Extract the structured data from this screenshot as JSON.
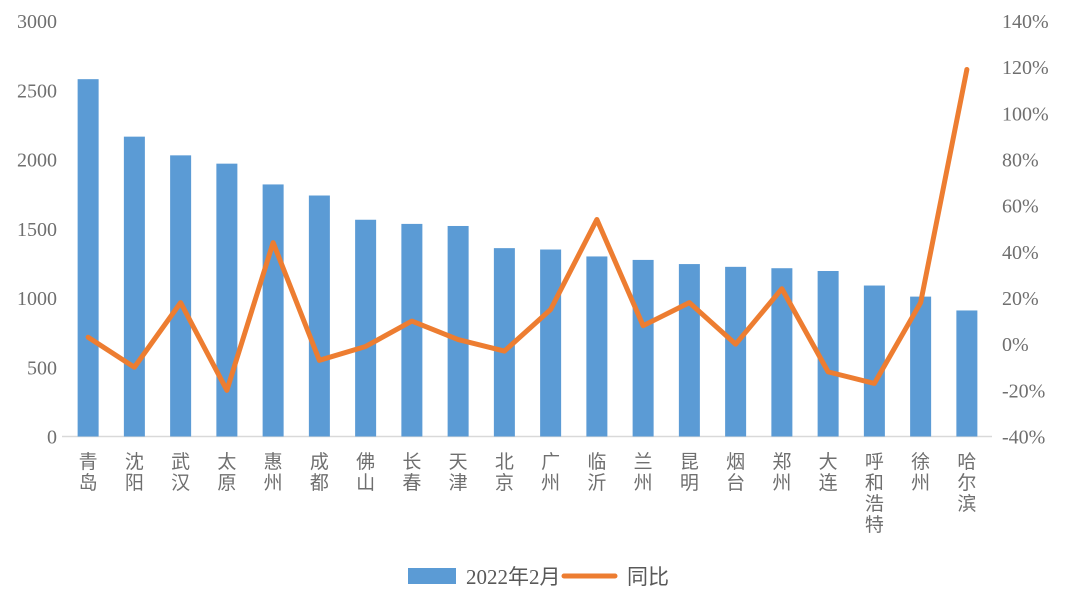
{
  "chart_data": {
    "type": "bar",
    "combo": "bar+line dual axis",
    "title": "",
    "categories": [
      "青岛",
      "沈阳",
      "武汉",
      "太原",
      "惠州",
      "成都",
      "佛山",
      "长春",
      "天津",
      "北京",
      "广州",
      "临沂",
      "兰州",
      "昆明",
      "烟台",
      "郑州",
      "大连",
      "呼和浩特",
      "徐州",
      "哈尔滨"
    ],
    "series": [
      {
        "name": "2022年2月",
        "type": "bar",
        "axis": "left",
        "color": "#5B9BD5",
        "values": [
          2580,
          2165,
          2030,
          1970,
          1820,
          1740,
          1565,
          1535,
          1520,
          1360,
          1350,
          1300,
          1275,
          1245,
          1225,
          1215,
          1195,
          1090,
          1010,
          910
        ]
      },
      {
        "name": "同比",
        "type": "line",
        "axis": "right",
        "color": "#ED7D31",
        "values_percent": [
          3,
          -10,
          18,
          -20,
          44,
          -7,
          -1,
          10,
          2,
          -3,
          15,
          54,
          8,
          18,
          0,
          24,
          -12,
          -17,
          18,
          119
        ]
      }
    ],
    "left_axis": {
      "min": 0,
      "max": 3000,
      "step": 500,
      "tick_labels": [
        "0",
        "500",
        "1000",
        "1500",
        "2000",
        "2500",
        "3000"
      ]
    },
    "right_axis": {
      "min": -40,
      "max": 140,
      "step": 20,
      "tick_labels": [
        "-40%",
        "-20%",
        "0%",
        "20%",
        "40%",
        "60%",
        "80%",
        "100%",
        "120%",
        "140%"
      ]
    },
    "grid": false,
    "legend_position": "bottom-center",
    "legend": [
      {
        "label": "2022年2月",
        "swatch": "rect",
        "color": "#5B9BD5"
      },
      {
        "label": "同比",
        "swatch": "line",
        "color": "#ED7D31"
      }
    ]
  },
  "colors": {
    "bar": "#5B9BD5",
    "line": "#ED7D31",
    "axis_text": "#6f6f6f",
    "legend_text": "#595959",
    "baseline": "#d9d9d9",
    "background": "#ffffff"
  }
}
